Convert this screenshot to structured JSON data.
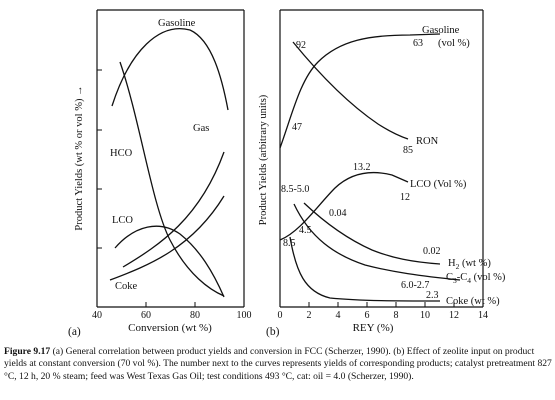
{
  "caption": {
    "label": "Figure 9.17",
    "text": "(a) General correlation between product yields and conversion in FCC (Scherzer, 1990). (b) Effect of zeolite input on product yields at constant conversion (70 vol %). The number next to the curves represents yields of corresponding products; catalyst pretreatment 827 °C, 12 h, 20 % steam; feed was West Texas Gas Oil; test conditions 493 °C, cat: oil = 4.0 (Scherzer, 1990)."
  },
  "chart_data": [
    {
      "panel_label": "(a)",
      "type": "line",
      "xlabel": "Conversion (wt %)",
      "ylabel": "Product Yields (wt % or vol %) →",
      "xlim": [
        40,
        100
      ],
      "xticks": [
        "40",
        "60",
        "80",
        "100"
      ],
      "grid": false,
      "series": [
        {
          "name": "Gasoline",
          "x": [
            48,
            55,
            63,
            70,
            76,
            83,
            90,
            96
          ],
          "y": [
            0.68,
            0.79,
            0.88,
            0.93,
            0.94,
            0.9,
            0.79,
            0.63
          ]
        },
        {
          "name": "Gas",
          "x": [
            52,
            62,
            72,
            80,
            87,
            93,
            96
          ],
          "y": [
            0.11,
            0.18,
            0.27,
            0.35,
            0.44,
            0.53,
            0.59
          ]
        },
        {
          "name": "HCO",
          "x": [
            50,
            56,
            62,
            68,
            75,
            82,
            89,
            96
          ],
          "y": [
            0.87,
            0.73,
            0.55,
            0.4,
            0.24,
            0.14,
            0.07,
            0.0
          ]
        },
        {
          "name": "LCO",
          "x": [
            48,
            55,
            62,
            70,
            78,
            86,
            92,
            96
          ],
          "y": [
            0.2,
            0.25,
            0.27,
            0.26,
            0.2,
            0.12,
            0.05,
            0.0
          ]
        },
        {
          "name": "Coke",
          "x": [
            48,
            56,
            64,
            72,
            80,
            88,
            96
          ],
          "y": [
            0.08,
            0.1,
            0.13,
            0.17,
            0.24,
            0.35,
            0.5
          ]
        }
      ]
    },
    {
      "panel_label": "(b)",
      "type": "line",
      "xlabel": "REY (%)",
      "ylabel": "Product Yields (arbitrary units)",
      "xlim": [
        0,
        14
      ],
      "xticks": [
        "0",
        "2",
        "4",
        "6",
        "8",
        "10",
        "12",
        "14"
      ],
      "grid": false,
      "series": [
        {
          "name": "Gasoline (vol %)",
          "x": [
            0,
            1,
            2,
            3,
            4,
            6,
            8,
            10,
            11.5
          ],
          "y": [
            0.53,
            0.62,
            0.75,
            0.84,
            0.88,
            0.91,
            0.93,
            0.94,
            0.94
          ]
        },
        {
          "name": "RON",
          "x": [
            1.2,
            3,
            5,
            7,
            9,
            10.5
          ],
          "y": [
            0.94,
            0.85,
            0.75,
            0.67,
            0.6,
            0.57
          ]
        },
        {
          "name": "LCO (Vol %)",
          "x": [
            0,
            1.5,
            3,
            4.5,
            6,
            7.5,
            9,
            11,
            12
          ],
          "y": [
            0.22,
            0.26,
            0.33,
            0.39,
            0.43,
            0.44,
            0.43,
            0.4,
            0.39
          ]
        },
        {
          "name": "H2 (wt %)",
          "x": [
            1.8,
            3.5,
            5.5,
            7.5,
            9.5,
            11,
            12
          ],
          "y": [
            0.36,
            0.31,
            0.25,
            0.19,
            0.15,
            0.13,
            0.12
          ]
        },
        {
          "name": "C3-C4 (vol %)",
          "x": [
            1.2,
            3,
            5,
            7,
            9,
            11,
            12.5
          ],
          "y": [
            0.36,
            0.27,
            0.18,
            0.13,
            0.1,
            0.08,
            0.07
          ]
        },
        {
          "name": "Coke (wt %)",
          "x": [
            0.8,
            1.6,
            2.5,
            4,
            6,
            8,
            10,
            11.5
          ],
          "y": [
            0.26,
            0.12,
            0.06,
            0.03,
            0.015,
            0.01,
            0.006,
            0.005
          ]
        }
      ],
      "annotations": [
        "92",
        "63",
        "47",
        "85",
        "13.2",
        "12",
        "8.5-5.0",
        "0.04",
        "8.5",
        "4.5",
        "0.02",
        "6.0-2.7",
        "2.3"
      ]
    }
  ],
  "labels_a": {
    "gasoline": "Gasoline",
    "gas": "Gas",
    "hco": "HCO",
    "lco": "LCO",
    "coke": "Coke"
  },
  "labels_b": {
    "gasoline_1": "Gasoline",
    "gasoline_2": "(vol %)",
    "ron": "RON",
    "lco": "LCO (Vol %)",
    "h2_prefix": "H",
    "h2_sub": "2",
    "h2_suffix": " (wt %)",
    "c3_a": "C",
    "c3_sub1": "3",
    "c3_b": "-C",
    "c3_sub2": "4",
    "c3_c": " (vol %)",
    "coke": "Coke (wt %)"
  }
}
